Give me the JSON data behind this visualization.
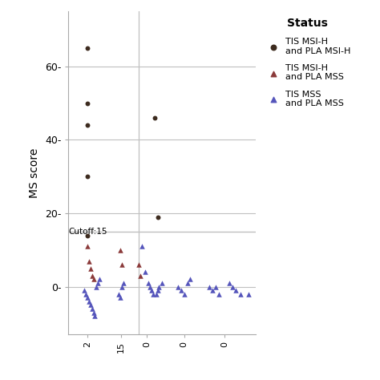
{
  "ylabel": "MS score",
  "cutoff_y": 15,
  "cutoff_label": "Cutoff:15",
  "ylim": [
    -13,
    75
  ],
  "xlim": [
    -2.5,
    9.5
  ],
  "background_color": "#ffffff",
  "grid_color": "#c0c0c0",
  "vline_x": 2.0,
  "series_msih_msih": {
    "name": "TIS MSI-H and PLA MSI-H",
    "marker": "o",
    "color": "#3d2b1f",
    "size": 18,
    "x": [
      -1.3,
      -1.3,
      -1.3,
      -1.3,
      -1.3,
      3.0,
      3.2
    ],
    "y": [
      65,
      50,
      44,
      30,
      14,
      46,
      19
    ]
  },
  "series_msih_mss": {
    "name": "TIS MSI-H and PLA MSS",
    "marker": "^",
    "color": "#8B3A3A",
    "size": 22,
    "x": [
      -1.3,
      -1.2,
      -1.1,
      -1.0,
      -0.9,
      0.8,
      0.9,
      2.0,
      2.1
    ],
    "y": [
      11,
      7,
      5,
      3,
      2,
      10,
      6,
      6,
      3
    ]
  },
  "series_mss_mss": {
    "name": "TIS MSS and PLA MSS",
    "marker": "^",
    "color": "#5555bb",
    "size": 22,
    "x": [
      -1.5,
      -1.4,
      -1.3,
      -1.2,
      -1.1,
      -1.0,
      -0.9,
      -0.8,
      -0.7,
      -0.6,
      -0.5,
      0.7,
      0.8,
      0.9,
      1.0,
      2.2,
      2.4,
      2.6,
      2.7,
      2.8,
      2.9,
      3.1,
      3.2,
      3.3,
      3.5,
      4.5,
      4.7,
      4.9,
      5.1,
      5.3,
      6.5,
      6.7,
      6.9,
      7.1,
      7.8,
      8.0,
      8.2,
      8.5,
      9.0
    ],
    "y": [
      -1,
      -2,
      -3,
      -4,
      -5,
      -6,
      -7,
      -8,
      0,
      1,
      2,
      -2,
      -3,
      0,
      1,
      11,
      4,
      1,
      0,
      -1,
      -2,
      -2,
      -1,
      0,
      1,
      0,
      -1,
      -2,
      1,
      2,
      0,
      -1,
      0,
      -2,
      1,
      0,
      -1,
      -2,
      -2
    ]
  },
  "legend_title": "Status",
  "legend_items": [
    {
      "label": "TIS MSI-H\nand PLA MSI-H",
      "marker": "o",
      "color": "#3d2b1f"
    },
    {
      "label": "TIS MSI-H\nand PLA MSS",
      "marker": "^",
      "color": "#8B3A3A"
    },
    {
      "label": "TIS MSS\nand PLA MSS",
      "marker": "^",
      "color": "#5555bb"
    }
  ]
}
